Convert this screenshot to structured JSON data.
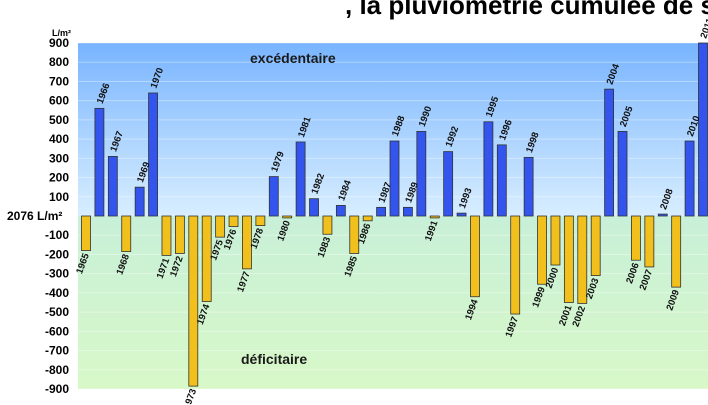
{
  "header": {
    "partial_title": ", la pluviométrie cumulée de septembre"
  },
  "colors": {
    "positive": "#3355ee",
    "negative": "#f2c01c",
    "bar_stroke": "#333333",
    "sky_top": "#78b4ff",
    "sky_bottom": "#d8eeff",
    "grass_top": "#c8f0d8",
    "grass_bottom": "#d8f8c8"
  },
  "chart_data": {
    "type": "bar",
    "unit_label": "L/m²",
    "baseline_label": "2076 L/m²",
    "zone_labels": {
      "above": "excédentaire",
      "below": "déficitaire"
    },
    "y_ticks": [
      900,
      800,
      700,
      600,
      500,
      400,
      300,
      200,
      100,
      -100,
      -200,
      -300,
      -400,
      -500,
      -600,
      -700,
      -800,
      -900
    ],
    "y_tick_labels": [
      "900",
      "800",
      "700",
      "600",
      "500",
      "400",
      "300",
      "200",
      "100",
      "-100",
      "-200",
      "-300",
      "-400",
      "-500",
      "-600",
      "-700",
      "-800",
      "-900"
    ],
    "ylim": [
      -900,
      900
    ],
    "categories": [
      "1965",
      "1966",
      "1967",
      "1968",
      "1969",
      "1970",
      "1971",
      "1972",
      "973",
      "1974",
      "1975",
      "1976",
      "1977",
      "1978",
      "1979",
      "1980",
      "1981",
      "1982",
      "1983",
      "1984",
      "1985",
      "1986",
      "1987",
      "1988",
      "1989",
      "1990",
      "1991",
      "1992",
      "1993",
      "1994",
      "1995",
      "1996",
      "1997",
      "1998",
      "1999",
      "2000",
      "2001",
      "2002",
      "2003",
      "2004",
      "2005",
      "2006",
      "2007",
      "2008",
      "2009",
      "2010",
      "2011"
    ],
    "values": [
      -180,
      560,
      310,
      -185,
      150,
      640,
      -205,
      -195,
      -885,
      -445,
      -110,
      -55,
      -275,
      -50,
      205,
      -10,
      385,
      90,
      -95,
      55,
      -195,
      -25,
      45,
      390,
      45,
      440,
      -10,
      335,
      15,
      -420,
      490,
      370,
      -510,
      305,
      -355,
      -255,
      -450,
      -455,
      -310,
      660,
      440,
      -230,
      -265,
      10,
      -370,
      390,
      900
    ]
  }
}
